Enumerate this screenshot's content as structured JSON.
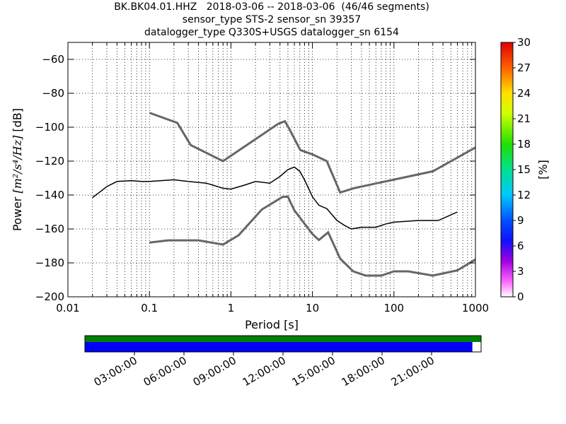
{
  "title": {
    "line1": "BK.BK04.01.HHZ   2018-03-06 -- 2018-03-06  (46/46 segments)",
    "line2": "sensor_type STS-2 sensor_sn 39357",
    "line3": "datalogger_type Q330S+USGS datalogger_sn 6154"
  },
  "chart_data": {
    "type": "heatmap",
    "xlabel": "Period [s]",
    "ylabel_prefix": "Power ",
    "ylabel_units": "[m²/s⁴/Hz]",
    "ylabel_suffix": " [dB]",
    "x_scale": "log",
    "xlim": [
      0.01,
      1000
    ],
    "ylim": [
      -200,
      -50
    ],
    "x_ticks": [
      {
        "value": 0.01,
        "label": "0.01"
      },
      {
        "value": 0.1,
        "label": "0.1"
      },
      {
        "value": 1,
        "label": "1"
      },
      {
        "value": 10,
        "label": "10"
      },
      {
        "value": 100,
        "label": "100"
      },
      {
        "value": 1000,
        "label": "1000"
      }
    ],
    "y_ticks": [
      {
        "value": -60,
        "label": "−60"
      },
      {
        "value": -80,
        "label": "−80"
      },
      {
        "value": -100,
        "label": "−100"
      },
      {
        "value": -120,
        "label": "−120"
      },
      {
        "value": -140,
        "label": "−140"
      },
      {
        "value": -160,
        "label": "−160"
      },
      {
        "value": -180,
        "label": "−180"
      },
      {
        "value": -200,
        "label": "−200"
      }
    ],
    "grid": true,
    "colorbar": {
      "label": "[%]",
      "min": 0,
      "max": 30,
      "ticks": [
        "0",
        "3",
        "6",
        "9",
        "12",
        "15",
        "18",
        "21",
        "24",
        "27",
        "30"
      ]
    },
    "noise_models": [
      {
        "name": "high",
        "points": [
          [
            0.1,
            -91.5
          ],
          [
            0.22,
            -97.4
          ],
          [
            0.32,
            -110.5
          ],
          [
            0.8,
            -120
          ],
          [
            3.8,
            -98
          ],
          [
            4.6,
            -96.5
          ],
          [
            5.2,
            -101
          ],
          [
            7.1,
            -113.5
          ],
          [
            10,
            -116
          ],
          [
            15,
            -120
          ],
          [
            21.9,
            -138.5
          ],
          [
            32,
            -136
          ],
          [
            300,
            -126
          ],
          [
            1000,
            -112
          ]
        ]
      },
      {
        "name": "low",
        "points": [
          [
            0.1,
            -168
          ],
          [
            0.17,
            -166.7
          ],
          [
            0.4,
            -166.7
          ],
          [
            0.8,
            -169.2
          ],
          [
            1.24,
            -163.7
          ],
          [
            2.4,
            -148.5
          ],
          [
            4.3,
            -141.1
          ],
          [
            5,
            -141
          ],
          [
            6,
            -149
          ],
          [
            10,
            -163
          ],
          [
            12,
            -166.5
          ],
          [
            15.6,
            -162
          ],
          [
            21.9,
            -177.5
          ],
          [
            31.6,
            -185
          ],
          [
            45,
            -187.5
          ],
          [
            70,
            -187.5
          ],
          [
            100,
            -185
          ],
          [
            150,
            -185
          ],
          [
            300,
            -187.5
          ],
          [
            600,
            -184.4
          ],
          [
            1000,
            -178
          ]
        ]
      }
    ],
    "median": {
      "points": [
        [
          0.02,
          -141.5
        ],
        [
          0.025,
          -138
        ],
        [
          0.03,
          -135
        ],
        [
          0.04,
          -132
        ],
        [
          0.06,
          -131.5
        ],
        [
          0.08,
          -132
        ],
        [
          0.1,
          -132
        ],
        [
          0.2,
          -131
        ],
        [
          0.3,
          -132
        ],
        [
          0.5,
          -133
        ],
        [
          0.8,
          -136
        ],
        [
          1,
          -136.5
        ],
        [
          1.5,
          -134
        ],
        [
          2,
          -132
        ],
        [
          3,
          -133
        ],
        [
          4,
          -129
        ],
        [
          5,
          -125
        ],
        [
          6,
          -123.5
        ],
        [
          7,
          -126
        ],
        [
          8,
          -131
        ],
        [
          10,
          -141
        ],
        [
          12,
          -146
        ],
        [
          15,
          -148
        ],
        [
          20,
          -155
        ],
        [
          25,
          -158
        ],
        [
          30,
          -160
        ],
        [
          40,
          -159
        ],
        [
          60,
          -159
        ],
        [
          80,
          -157
        ],
        [
          100,
          -156
        ],
        [
          200,
          -155
        ],
        [
          350,
          -155
        ],
        [
          600,
          -150
        ]
      ]
    },
    "timeline": {
      "coverage_start_fraction": 0.0,
      "coverage_end_fraction": 0.978,
      "colors": {
        "top": "#008000",
        "bottom": "#0000ff"
      },
      "tick_labels": [
        "03:00:00",
        "06:00:00",
        "09:00:00",
        "12:00:00",
        "15:00:00",
        "18:00:00",
        "21:00:00"
      ]
    }
  }
}
